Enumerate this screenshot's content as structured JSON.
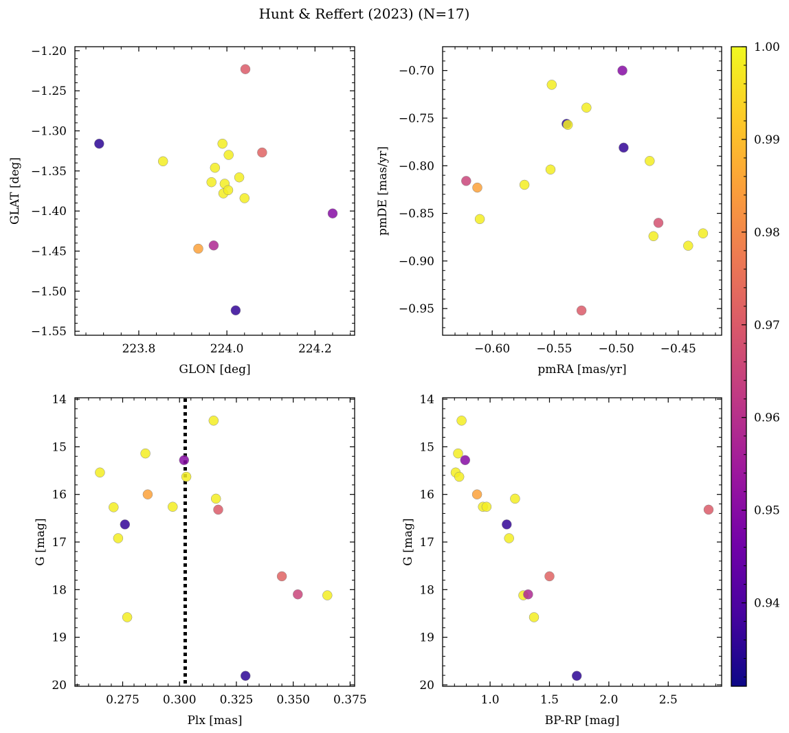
{
  "title": "Hunt & Reffert (2023) (N=17)",
  "chart_data": [
    {
      "type": "scatter",
      "id": "p1",
      "xlabel": "GLON [deg]",
      "ylabel": "GLAT [deg]",
      "xlim": [
        223.655,
        224.29
      ],
      "ylim": [
        -1.555,
        -1.195
      ],
      "yinvert": false,
      "xticks": [
        223.8,
        224.0,
        224.2
      ],
      "xticklabels": [
        "223.8",
        "224.0",
        "224.2"
      ],
      "yticks": [
        -1.2,
        -1.25,
        -1.3,
        -1.35,
        -1.4,
        -1.45,
        -1.5,
        -1.55
      ],
      "yticklabels": [
        "−1.20",
        "−1.25",
        "−1.30",
        "−1.35",
        "−1.40",
        "−1.45",
        "−1.50",
        "−1.55"
      ],
      "x": [
        223.71,
        223.855,
        223.935,
        223.965,
        223.97,
        223.973,
        223.99,
        223.992,
        223.995,
        224.003,
        224.004,
        224.028,
        224.04,
        224.042,
        224.08,
        224.02,
        224.24
      ],
      "y": [
        -1.316,
        -1.338,
        -1.447,
        -1.364,
        -1.443,
        -1.346,
        -1.316,
        -1.378,
        -1.366,
        -1.374,
        -1.33,
        -1.358,
        -1.384,
        -1.223,
        -1.327,
        -1.524,
        -1.403
      ],
      "c": [
        0.935,
        0.998,
        0.985,
        0.998,
        0.958,
        0.998,
        0.998,
        0.998,
        0.998,
        0.998,
        0.998,
        0.998,
        0.998,
        0.97,
        0.972,
        0.936,
        0.95
      ]
    },
    {
      "type": "scatter",
      "id": "p2",
      "xlabel": "pmRA [mas/yr]",
      "ylabel": "pmDE [mas/yr]",
      "xlim": [
        -0.64,
        -0.415
      ],
      "ylim": [
        -0.978,
        -0.675
      ],
      "yinvert": false,
      "xticks": [
        -0.6,
        -0.55,
        -0.5,
        -0.45
      ],
      "xticklabels": [
        "−0.60",
        "−0.55",
        "−0.50",
        "−0.45"
      ],
      "yticks": [
        -0.7,
        -0.75,
        -0.8,
        -0.85,
        -0.9,
        -0.95
      ],
      "yticklabels": [
        "−0.70",
        "−0.75",
        "−0.80",
        "−0.85",
        "−0.90",
        "−0.95"
      ],
      "x": [
        -0.621,
        -0.612,
        -0.61,
        -0.574,
        -0.553,
        -0.552,
        -0.54,
        -0.539,
        -0.524,
        -0.528,
        -0.495,
        -0.494,
        -0.473,
        -0.47,
        -0.466,
        -0.442,
        -0.43
      ],
      "y": [
        -0.816,
        -0.823,
        -0.856,
        -0.82,
        -0.804,
        -0.715,
        -0.756,
        -0.757,
        -0.739,
        -0.952,
        -0.7,
        -0.781,
        -0.795,
        -0.874,
        -0.86,
        -0.884,
        -0.871
      ],
      "c": [
        0.965,
        0.985,
        0.998,
        0.998,
        0.998,
        0.998,
        0.935,
        0.998,
        0.998,
        0.97,
        0.95,
        0.936,
        0.998,
        0.998,
        0.968,
        0.998,
        0.998
      ]
    },
    {
      "type": "scatter",
      "id": "p3",
      "xlabel": "Plx [mas]",
      "ylabel": "G [mag]",
      "xlim": [
        0.254,
        0.377
      ],
      "ylim": [
        20.03,
        13.97
      ],
      "yinvert": true,
      "vline": 0.3025,
      "xticks": [
        0.275,
        0.3,
        0.325,
        0.35,
        0.375
      ],
      "xticklabels": [
        "0.275",
        "0.300",
        "0.325",
        "0.350",
        "0.375"
      ],
      "yticks": [
        14,
        15,
        16,
        17,
        18,
        19,
        20
      ],
      "yticklabels": [
        "14",
        "15",
        "16",
        "17",
        "18",
        "19",
        "20"
      ],
      "x": [
        0.265,
        0.271,
        0.273,
        0.276,
        0.277,
        0.285,
        0.286,
        0.297,
        0.302,
        0.303,
        0.315,
        0.316,
        0.317,
        0.329,
        0.345,
        0.352,
        0.365
      ],
      "y": [
        15.54,
        16.27,
        16.92,
        16.63,
        18.58,
        15.14,
        16.0,
        16.26,
        15.28,
        15.63,
        14.45,
        16.09,
        16.32,
        19.81,
        17.72,
        18.1,
        18.12
      ],
      "c": [
        0.998,
        0.998,
        0.998,
        0.936,
        0.998,
        0.998,
        0.985,
        0.998,
        0.95,
        0.998,
        0.998,
        0.998,
        0.97,
        0.935,
        0.972,
        0.965,
        0.998
      ]
    },
    {
      "type": "scatter",
      "id": "p4",
      "xlabel": "BP-RP [mag]",
      "ylabel": "G [mag]",
      "xlim": [
        0.6,
        2.95
      ],
      "ylim": [
        20.03,
        13.97
      ],
      "yinvert": true,
      "xticks": [
        1.0,
        1.5,
        2.0,
        2.5
      ],
      "xticklabels": [
        "1.0",
        "1.5",
        "2.0",
        "2.5"
      ],
      "yticks": [
        14,
        15,
        16,
        17,
        18,
        19,
        20
      ],
      "yticklabels": [
        "14",
        "15",
        "16",
        "17",
        "18",
        "19",
        "20"
      ],
      "x": [
        0.76,
        0.73,
        0.71,
        0.74,
        0.79,
        0.89,
        0.94,
        0.97,
        1.21,
        1.14,
        1.16,
        1.28,
        1.32,
        1.37,
        1.5,
        1.73,
        2.84
      ],
      "y": [
        14.45,
        15.14,
        15.54,
        15.63,
        15.28,
        16.0,
        16.26,
        16.26,
        16.09,
        16.63,
        16.92,
        18.12,
        18.1,
        18.58,
        17.72,
        19.81,
        16.32
      ],
      "c": [
        0.998,
        0.998,
        0.998,
        0.998,
        0.95,
        0.985,
        0.998,
        0.998,
        0.998,
        0.936,
        0.998,
        0.998,
        0.958,
        0.998,
        0.972,
        0.935,
        0.97
      ]
    }
  ],
  "colorbar": {
    "min": 0.931,
    "max": 1.0,
    "ticks": [
      0.94,
      0.95,
      0.96,
      0.97,
      0.98,
      0.99,
      1.0
    ],
    "ticklabels": [
      "0.94",
      "0.95",
      "0.96",
      "0.97",
      "0.98",
      "0.99",
      "1.00"
    ],
    "colormap": [
      "#0d0887",
      "#46039f",
      "#7201a8",
      "#9c179e",
      "#bd3786",
      "#d8576b",
      "#ed7953",
      "#fb9f3a",
      "#fdca26",
      "#f0f921"
    ]
  }
}
